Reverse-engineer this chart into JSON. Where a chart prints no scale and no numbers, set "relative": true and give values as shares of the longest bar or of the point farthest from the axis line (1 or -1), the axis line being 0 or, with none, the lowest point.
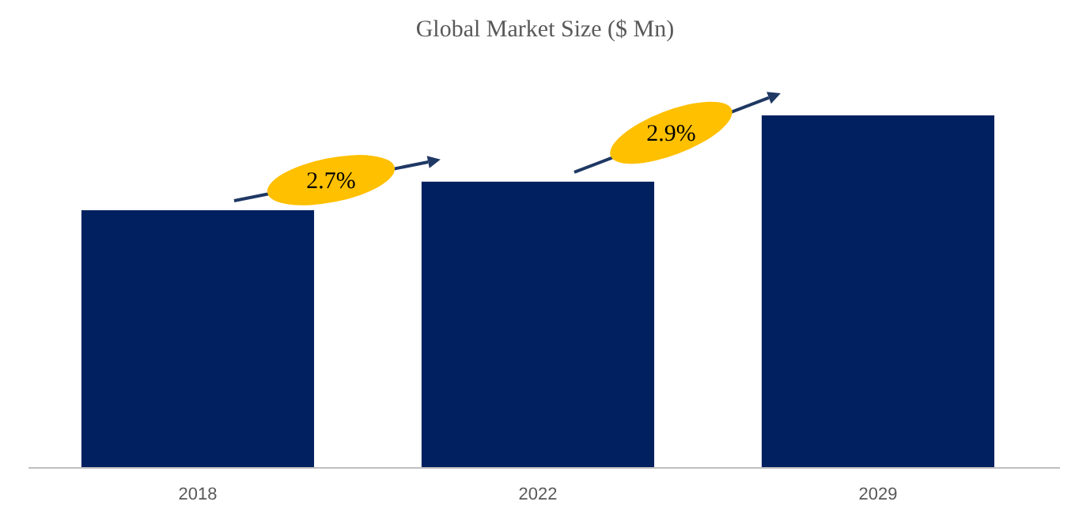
{
  "chart_data": {
    "type": "bar",
    "title": "Global Market Size ($ Mn)",
    "categories": [
      "2018",
      "2022",
      "2029"
    ],
    "values": [
      0.731,
      0.812,
      1
    ],
    "color": "#002060",
    "relative": true,
    "annotations": [
      "2.7%",
      "2.9%"
    ]
  }
}
